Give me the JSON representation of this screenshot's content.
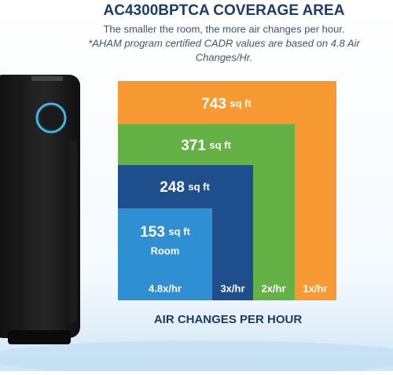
{
  "header": {
    "title": "AC4300BPTCA COVERAGE AREA",
    "subtitle": "The smaller the room, the more air changes per hour.",
    "note_line1": "*AHAM program certified CADR values are based on 4.8 Air",
    "note_line2": "Changes/Hr."
  },
  "areas": [
    {
      "size": "743",
      "unit": "sq ft",
      "rate": "1x/hr"
    },
    {
      "size": "371",
      "unit": "sq ft",
      "rate": "2x/hr"
    },
    {
      "size": "248",
      "unit": "sq ft",
      "rate": "3x/hr"
    },
    {
      "size": "153",
      "unit": "sq ft",
      "room": "Room",
      "rate": "4.8x/hr"
    }
  ],
  "axis_label": "AIR CHANGES PER HOUR"
}
